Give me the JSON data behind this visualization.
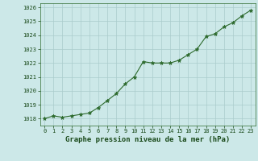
{
  "x": [
    0,
    1,
    2,
    3,
    4,
    5,
    6,
    7,
    8,
    9,
    10,
    11,
    12,
    13,
    14,
    15,
    16,
    17,
    18,
    19,
    20,
    21,
    22,
    23
  ],
  "y": [
    1018.0,
    1018.2,
    1018.1,
    1018.2,
    1018.3,
    1018.4,
    1018.8,
    1019.3,
    1019.8,
    1020.5,
    1021.0,
    1022.1,
    1022.0,
    1022.0,
    1022.0,
    1022.2,
    1022.6,
    1023.0,
    1023.9,
    1024.1,
    1024.6,
    1024.9,
    1025.4,
    1025.8
  ],
  "ylim": [
    1017.5,
    1026.3
  ],
  "yticks": [
    1018,
    1019,
    1020,
    1021,
    1022,
    1023,
    1024,
    1025,
    1026
  ],
  "xlabel": "Graphe pression niveau de la mer (hPa)",
  "line_color": "#2d6a2d",
  "marker_color": "#2d6a2d",
  "bg_color": "#cce8e8",
  "grid_color": "#aacccc",
  "xlabel_color": "#1a4a1a",
  "tick_color": "#1a4a1a",
  "axis_color": "#2d6a2d",
  "marker_style": "*",
  "linewidth": 0.8,
  "markersize": 3.5,
  "tick_fontsize": 5.0,
  "xlabel_fontsize": 6.5
}
